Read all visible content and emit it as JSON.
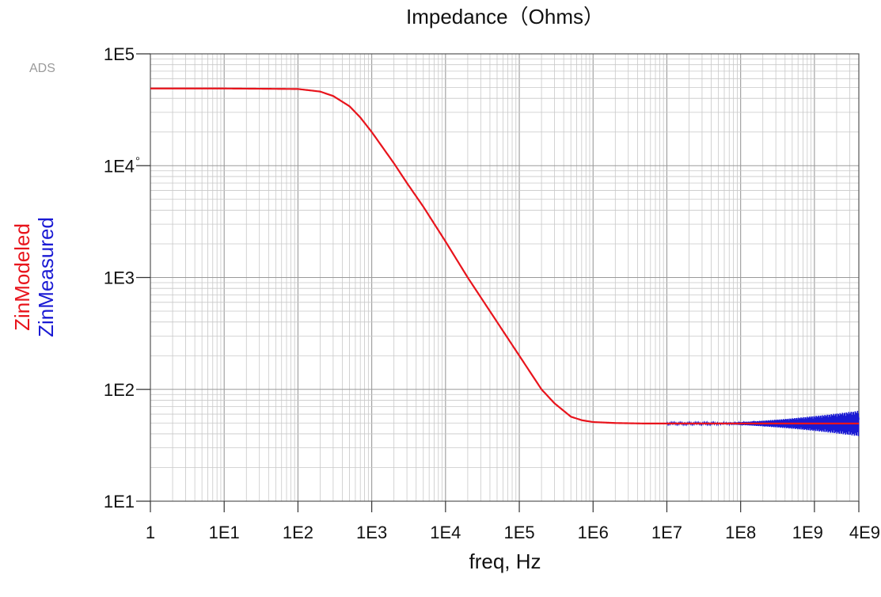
{
  "chart_data": {
    "type": "line",
    "title": "Impedance（Ohms）",
    "watermark": "ADS",
    "xlabel": "freq, Hz",
    "ylabels": [
      "ZinModeled",
      "ZinMeasured"
    ],
    "xscale": "log",
    "yscale": "log",
    "xlim": [
      1,
      4000000000
    ],
    "ylim": [
      10,
      100000
    ],
    "grid": true,
    "x_tick_values": [
      1,
      10,
      100,
      1000,
      10000,
      100000,
      1000000,
      10000000,
      100000000,
      1000000000,
      4000000000
    ],
    "x_tick_labels": [
      "1",
      "1E1",
      "1E2",
      "1E3",
      "1E4",
      "1E5",
      "1E6",
      "1E7",
      "1E8",
      "1E9",
      "4E9"
    ],
    "y_tick_values": [
      10,
      100,
      1000,
      10000,
      100000
    ],
    "y_tick_labels": [
      "1E1",
      "1E2",
      "1E3",
      "1E4",
      "1E5"
    ],
    "series": [
      {
        "name": "ZinModeled",
        "color": "#e8141c",
        "x": [
          1,
          10,
          100,
          200,
          300,
          500,
          700,
          1000,
          2000,
          3000,
          5000,
          10000,
          20000,
          50000,
          100000,
          200000,
          300000,
          500000,
          700000,
          1000000,
          2000000,
          5000000,
          10000000,
          100000000,
          1000000000,
          4000000000
        ],
        "y": [
          49000,
          49000,
          48500,
          46000,
          42000,
          34000,
          27000,
          20000,
          10500,
          7000,
          4300,
          2100,
          1000,
          400,
          200,
          100,
          75,
          57,
          53,
          51,
          50,
          49.5,
          49.5,
          49.5,
          49.5,
          49.5
        ]
      },
      {
        "name": "ZinMeasured",
        "color": "#1a1ad4",
        "x": [
          10000000,
          20000000,
          50000000,
          100000000,
          200000000,
          400000000,
          700000000,
          1000000000,
          2000000000,
          3000000000,
          4000000000
        ],
        "y": [
          51,
          49,
          50,
          49,
          50,
          48,
          52,
          47,
          55,
          44,
          63
        ],
        "noise": "oscillation amplitude grows above 1E8 Hz"
      }
    ]
  }
}
